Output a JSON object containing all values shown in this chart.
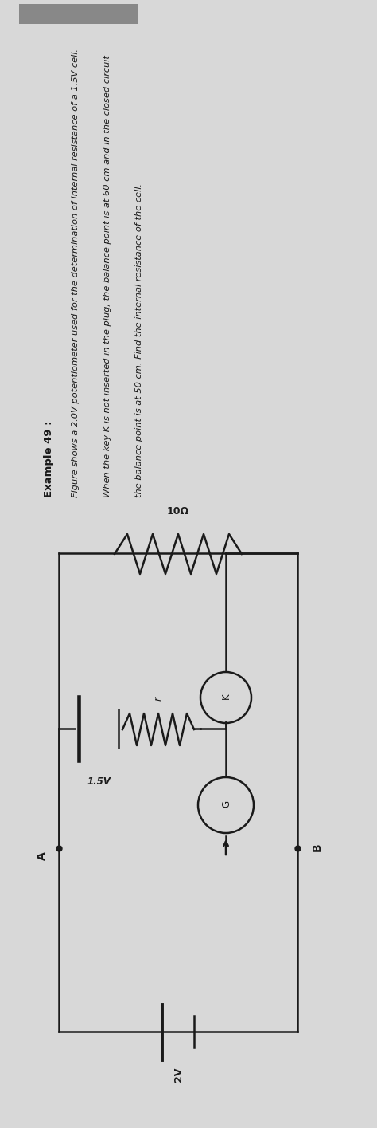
{
  "bg_color": "#c8c8c8",
  "page_color": "#d4d4d4",
  "text_color": "#1a1a1a",
  "example_label": "Example 49 :",
  "problem_line1": "Figure shows a 2.0V potentiometer used for the determination of internal resistance of a 1.5V cell.",
  "problem_line2": "When the key K is not inserted in the plug, the balance point is at 60 cm and in the closed circuit",
  "problem_line3": "the balance point is at 50 cm. Find the internal resistance of the cell.",
  "A_label": "A",
  "B_label": "B",
  "battery_main_label": "2V",
  "battery_cell_label": "1.5V",
  "resistor_ext_label": "10Ω",
  "resistor_int_label": "r",
  "galvanometer_label": "G",
  "key_label": "K",
  "lw": 1.8
}
